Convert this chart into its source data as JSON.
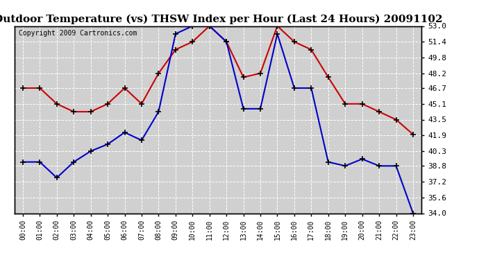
{
  "title": "Outdoor Temperature (vs) THSW Index per Hour (Last 24 Hours) 20091102",
  "copyright": "Copyright 2009 Cartronics.com",
  "hours": [
    "00:00",
    "01:00",
    "02:00",
    "03:00",
    "04:00",
    "05:00",
    "06:00",
    "07:00",
    "08:00",
    "09:00",
    "10:00",
    "11:00",
    "12:00",
    "13:00",
    "14:00",
    "15:00",
    "16:00",
    "17:00",
    "18:00",
    "19:00",
    "20:00",
    "21:00",
    "22:00",
    "23:00"
  ],
  "temp_red": [
    46.7,
    46.7,
    45.1,
    44.3,
    44.3,
    45.1,
    46.7,
    45.1,
    48.2,
    50.6,
    51.4,
    53.0,
    51.4,
    47.8,
    48.2,
    53.0,
    51.4,
    50.6,
    47.8,
    45.1,
    45.1,
    44.3,
    43.5,
    42.0
  ],
  "thsw_blue": [
    39.2,
    39.2,
    37.6,
    39.2,
    40.3,
    41.0,
    42.2,
    41.4,
    44.3,
    52.2,
    53.0,
    53.0,
    51.4,
    44.6,
    44.6,
    52.2,
    46.7,
    46.7,
    39.2,
    38.8,
    39.5,
    38.8,
    38.8,
    34.0
  ],
  "ylim": [
    34.0,
    53.0
  ],
  "yticks": [
    34.0,
    35.6,
    37.2,
    38.8,
    40.3,
    41.9,
    43.5,
    45.1,
    46.7,
    48.2,
    49.8,
    51.4,
    53.0
  ],
  "bg_color": "#ffffff",
  "plot_bg_color": "#d0d0d0",
  "grid_color": "white",
  "red_color": "#cc0000",
  "blue_color": "#0000cc",
  "title_fontsize": 11,
  "copyright_fontsize": 7
}
